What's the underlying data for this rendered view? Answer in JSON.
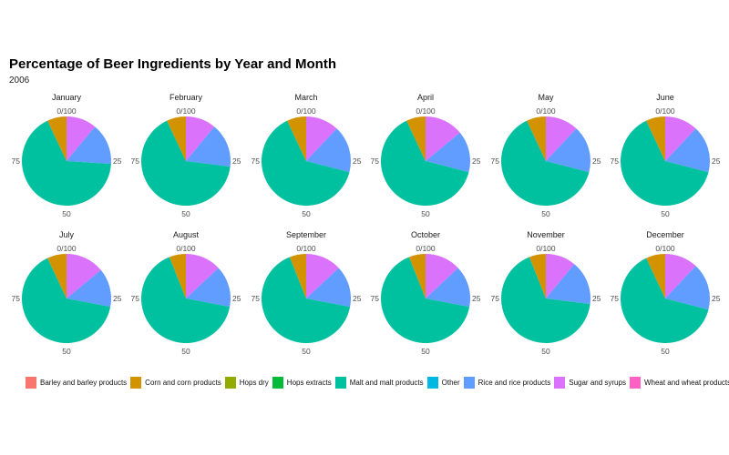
{
  "chart_data": {
    "type": "pie",
    "title": "Percentage of Beer Ingredients by Year and Month",
    "subtitle": "2006",
    "tick_labels": [
      "0/100",
      "25",
      "50",
      "75"
    ],
    "legend": [
      {
        "name": "Barley and barley products",
        "color": "#F8766D"
      },
      {
        "name": "Corn and  corn products",
        "color": "#D39200"
      },
      {
        "name": "Hops dry",
        "color": "#93AA00"
      },
      {
        "name": "Hops extracts",
        "color": "#00BA38"
      },
      {
        "name": "Malt and malt products",
        "color": "#00C19F"
      },
      {
        "name": "Other",
        "color": "#00B9E3"
      },
      {
        "name": "Rice and rice products",
        "color": "#619CFF"
      },
      {
        "name": "Sugar and syrups",
        "color": "#DB72FB"
      },
      {
        "name": "Wheat and wheat products",
        "color": "#FF61C3"
      }
    ],
    "categories": [
      "Barley and barley products",
      "Corn and  corn products",
      "Hops dry",
      "Hops extracts",
      "Malt and malt products",
      "Other",
      "Rice and rice products",
      "Sugar and syrups",
      "Wheat and wheat products"
    ],
    "panels": [
      {
        "month": "January",
        "values": [
          0,
          7,
          0,
          0,
          67,
          0,
          15,
          11,
          0
        ]
      },
      {
        "month": "February",
        "values": [
          0,
          7,
          0,
          0,
          66,
          0,
          16,
          11,
          0
        ]
      },
      {
        "month": "March",
        "values": [
          0,
          7,
          0,
          0,
          64,
          0,
          17,
          12,
          0
        ]
      },
      {
        "month": "April",
        "values": [
          0,
          7,
          0,
          0,
          64,
          0,
          15,
          14,
          0
        ]
      },
      {
        "month": "May",
        "values": [
          0,
          7,
          0,
          0,
          64,
          0,
          17,
          12,
          0
        ]
      },
      {
        "month": "June",
        "values": [
          0,
          7,
          0,
          0,
          64,
          0,
          17,
          12,
          0
        ]
      },
      {
        "month": "July",
        "values": [
          0,
          7,
          0,
          0,
          65,
          0,
          14,
          14,
          0
        ]
      },
      {
        "month": "August",
        "values": [
          0,
          6,
          0,
          0,
          66,
          0,
          15,
          13,
          0
        ]
      },
      {
        "month": "September",
        "values": [
          0,
          6,
          0,
          0,
          66,
          0,
          15,
          13,
          0
        ]
      },
      {
        "month": "October",
        "values": [
          0,
          6,
          0,
          0,
          66,
          0,
          15,
          13,
          0
        ]
      },
      {
        "month": "November",
        "values": [
          0,
          6,
          0,
          0,
          67,
          0,
          16,
          11,
          0
        ]
      },
      {
        "month": "December",
        "values": [
          0,
          7,
          0,
          0,
          64,
          0,
          17,
          12,
          0
        ]
      }
    ]
  }
}
